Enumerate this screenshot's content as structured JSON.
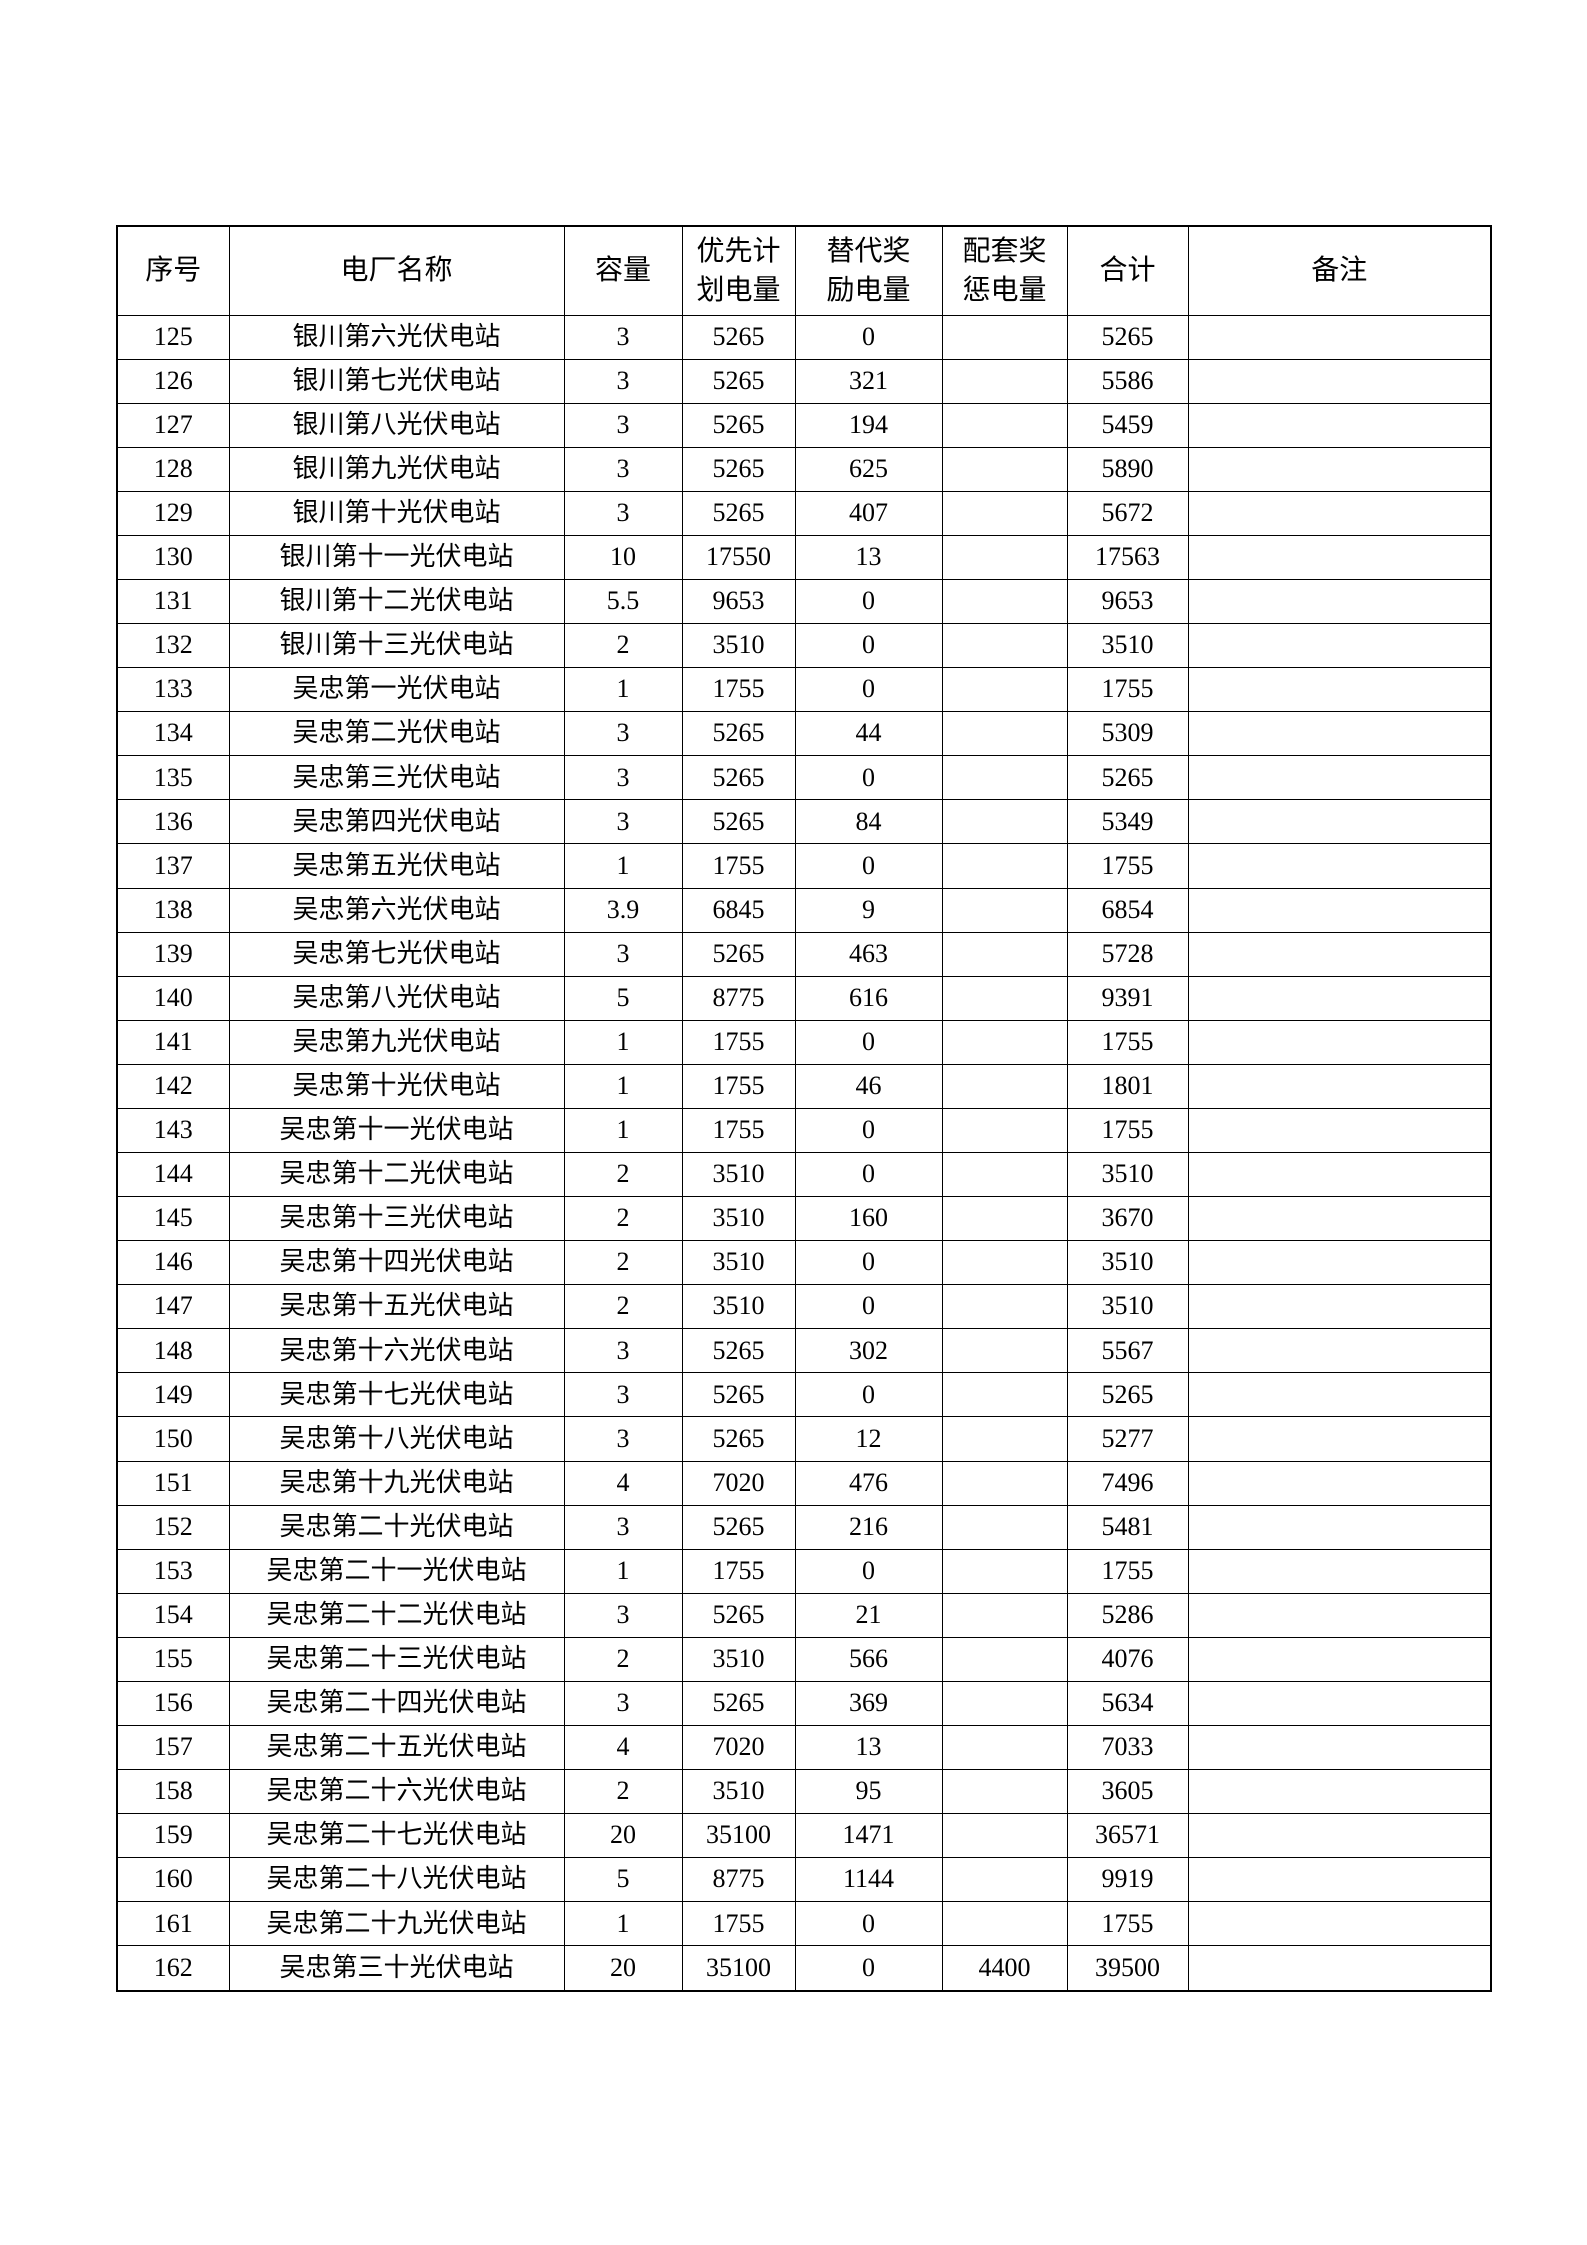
{
  "table": {
    "columns": [
      "序号",
      "电厂名称",
      "容量",
      "优先计\n划电量",
      "替代奖\n励电量",
      "配套奖\n惩电量",
      "合计",
      "备注"
    ],
    "rows": [
      [
        "125",
        "银川第六光伏电站",
        "3",
        "5265",
        "0",
        "",
        "5265",
        ""
      ],
      [
        "126",
        "银川第七光伏电站",
        "3",
        "5265",
        "321",
        "",
        "5586",
        ""
      ],
      [
        "127",
        "银川第八光伏电站",
        "3",
        "5265",
        "194",
        "",
        "5459",
        ""
      ],
      [
        "128",
        "银川第九光伏电站",
        "3",
        "5265",
        "625",
        "",
        "5890",
        ""
      ],
      [
        "129",
        "银川第十光伏电站",
        "3",
        "5265",
        "407",
        "",
        "5672",
        ""
      ],
      [
        "130",
        "银川第十一光伏电站",
        "10",
        "17550",
        "13",
        "",
        "17563",
        ""
      ],
      [
        "131",
        "银川第十二光伏电站",
        "5.5",
        "9653",
        "0",
        "",
        "9653",
        ""
      ],
      [
        "132",
        "银川第十三光伏电站",
        "2",
        "3510",
        "0",
        "",
        "3510",
        ""
      ],
      [
        "133",
        "吴忠第一光伏电站",
        "1",
        "1755",
        "0",
        "",
        "1755",
        ""
      ],
      [
        "134",
        "吴忠第二光伏电站",
        "3",
        "5265",
        "44",
        "",
        "5309",
        ""
      ],
      [
        "135",
        "吴忠第三光伏电站",
        "3",
        "5265",
        "0",
        "",
        "5265",
        ""
      ],
      [
        "136",
        "吴忠第四光伏电站",
        "3",
        "5265",
        "84",
        "",
        "5349",
        ""
      ],
      [
        "137",
        "吴忠第五光伏电站",
        "1",
        "1755",
        "0",
        "",
        "1755",
        ""
      ],
      [
        "138",
        "吴忠第六光伏电站",
        "3.9",
        "6845",
        "9",
        "",
        "6854",
        ""
      ],
      [
        "139",
        "吴忠第七光伏电站",
        "3",
        "5265",
        "463",
        "",
        "5728",
        ""
      ],
      [
        "140",
        "吴忠第八光伏电站",
        "5",
        "8775",
        "616",
        "",
        "9391",
        ""
      ],
      [
        "141",
        "吴忠第九光伏电站",
        "1",
        "1755",
        "0",
        "",
        "1755",
        ""
      ],
      [
        "142",
        "吴忠第十光伏电站",
        "1",
        "1755",
        "46",
        "",
        "1801",
        ""
      ],
      [
        "143",
        "吴忠第十一光伏电站",
        "1",
        "1755",
        "0",
        "",
        "1755",
        ""
      ],
      [
        "144",
        "吴忠第十二光伏电站",
        "2",
        "3510",
        "0",
        "",
        "3510",
        ""
      ],
      [
        "145",
        "吴忠第十三光伏电站",
        "2",
        "3510",
        "160",
        "",
        "3670",
        ""
      ],
      [
        "146",
        "吴忠第十四光伏电站",
        "2",
        "3510",
        "0",
        "",
        "3510",
        ""
      ],
      [
        "147",
        "吴忠第十五光伏电站",
        "2",
        "3510",
        "0",
        "",
        "3510",
        ""
      ],
      [
        "148",
        "吴忠第十六光伏电站",
        "3",
        "5265",
        "302",
        "",
        "5567",
        ""
      ],
      [
        "149",
        "吴忠第十七光伏电站",
        "3",
        "5265",
        "0",
        "",
        "5265",
        ""
      ],
      [
        "150",
        "吴忠第十八光伏电站",
        "3",
        "5265",
        "12",
        "",
        "5277",
        ""
      ],
      [
        "151",
        "吴忠第十九光伏电站",
        "4",
        "7020",
        "476",
        "",
        "7496",
        ""
      ],
      [
        "152",
        "吴忠第二十光伏电站",
        "3",
        "5265",
        "216",
        "",
        "5481",
        ""
      ],
      [
        "153",
        "吴忠第二十一光伏电站",
        "1",
        "1755",
        "0",
        "",
        "1755",
        ""
      ],
      [
        "154",
        "吴忠第二十二光伏电站",
        "3",
        "5265",
        "21",
        "",
        "5286",
        ""
      ],
      [
        "155",
        "吴忠第二十三光伏电站",
        "2",
        "3510",
        "566",
        "",
        "4076",
        ""
      ],
      [
        "156",
        "吴忠第二十四光伏电站",
        "3",
        "5265",
        "369",
        "",
        "5634",
        ""
      ],
      [
        "157",
        "吴忠第二十五光伏电站",
        "4",
        "7020",
        "13",
        "",
        "7033",
        ""
      ],
      [
        "158",
        "吴忠第二十六光伏电站",
        "2",
        "3510",
        "95",
        "",
        "3605",
        ""
      ],
      [
        "159",
        "吴忠第二十七光伏电站",
        "20",
        "35100",
        "1471",
        "",
        "36571",
        ""
      ],
      [
        "160",
        "吴忠第二十八光伏电站",
        "5",
        "8775",
        "1144",
        "",
        "9919",
        ""
      ],
      [
        "161",
        "吴忠第二十九光伏电站",
        "1",
        "1755",
        "0",
        "",
        "1755",
        ""
      ],
      [
        "162",
        "吴忠第三十光伏电站",
        "20",
        "35100",
        "0",
        "4400",
        "39500",
        ""
      ]
    ]
  }
}
